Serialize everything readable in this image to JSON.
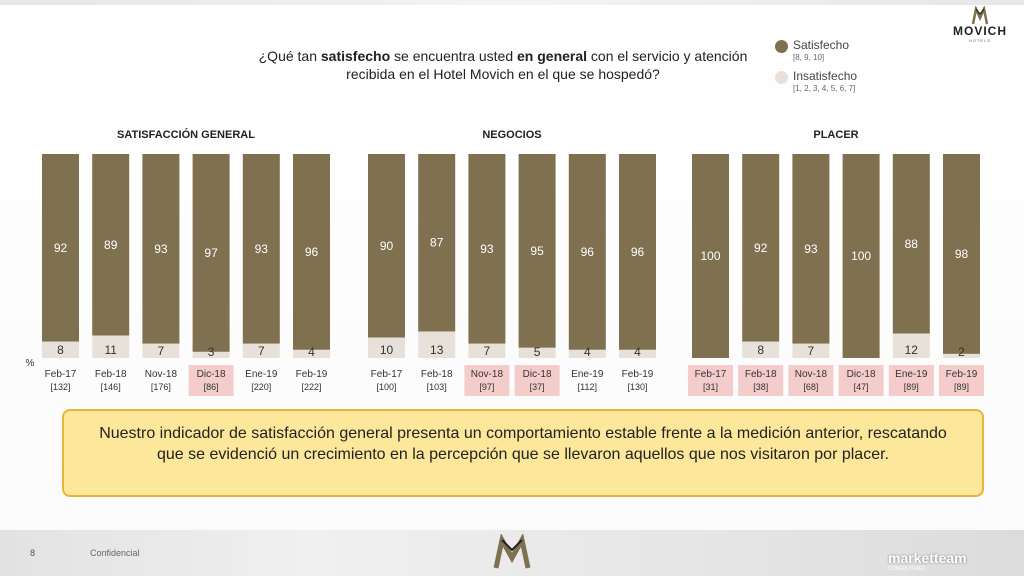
{
  "brand": {
    "logo_text": "MOVICH",
    "logo_sub": "HOTELS"
  },
  "question": {
    "p1": "¿Qué tan ",
    "b1": "satisfecho",
    "p2": " se encuentra usted ",
    "b2": "en general",
    "p3": " con el servicio y atención recibida en el Hotel Movich en el que se hospedó?"
  },
  "legend": [
    {
      "label": "Satisfecho",
      "sub": "[8, 9, 10]",
      "color": "#7f7150"
    },
    {
      "label": "Insatisfecho",
      "sub": "[1, 2, 3, 4, 5, 6, 7]",
      "color": "#e8e1da"
    }
  ],
  "percent_label": "%",
  "colors": {
    "satisfied": "#7f7150",
    "unsatisfied": "#e8e1da",
    "highlight": "#f5cccc",
    "callout_bg": "#fce79b",
    "callout_border": "#e8b53c"
  },
  "chart_data": [
    {
      "type": "bar",
      "stacked": true,
      "title": "SATISFACCIÓN GENERAL",
      "categories": [
        "Feb-17",
        "Feb-18",
        "Nov-18",
        "Dic-18",
        "Ene-19",
        "Feb-19"
      ],
      "bases": [
        "[132]",
        "[146]",
        "[176]",
        "[86]",
        "[220]",
        "[222]"
      ],
      "highlighted": [
        false,
        false,
        false,
        true,
        false,
        false
      ],
      "series": [
        {
          "name": "Satisfecho",
          "values": [
            92,
            89,
            93,
            97,
            93,
            96
          ]
        },
        {
          "name": "Insatisfecho",
          "values": [
            8,
            11,
            7,
            3,
            7,
            4
          ]
        }
      ],
      "ylim": [
        0,
        100
      ]
    },
    {
      "type": "bar",
      "stacked": true,
      "title": "NEGOCIOS",
      "categories": [
        "Feb-17",
        "Feb-18",
        "Nov-18",
        "Dic-18",
        "Ene-19",
        "Feb-19"
      ],
      "bases": [
        "[100]",
        "[103]",
        "[97]",
        "[37]",
        "[112]",
        "[130]"
      ],
      "highlighted": [
        false,
        false,
        true,
        true,
        false,
        false
      ],
      "series": [
        {
          "name": "Satisfecho",
          "values": [
            90,
            87,
            93,
            95,
            96,
            96
          ]
        },
        {
          "name": "Insatisfecho",
          "values": [
            10,
            13,
            7,
            5,
            4,
            4
          ]
        }
      ],
      "ylim": [
        0,
        100
      ]
    },
    {
      "type": "bar",
      "stacked": true,
      "title": "PLACER",
      "categories": [
        "Feb-17",
        "Feb-18",
        "Nov-18",
        "Dic-18",
        "Ene-19",
        "Feb-19"
      ],
      "bases": [
        "[31]",
        "[38]",
        "[68]",
        "[47]",
        "[89]",
        "[89]"
      ],
      "highlighted": [
        true,
        true,
        true,
        true,
        true,
        true
      ],
      "series": [
        {
          "name": "Satisfecho",
          "values": [
            100,
            92,
            93,
            100,
            88,
            98
          ]
        },
        {
          "name": "Insatisfecho",
          "values": [
            0,
            8,
            7,
            0,
            12,
            2
          ]
        }
      ],
      "ylim": [
        0,
        100
      ]
    }
  ],
  "callout": "Nuestro indicador de satisfacción general presenta un comportamiento estable frente a la medición anterior, rescatando que se evidenció un crecimiento en la percepción que se llevaron aquellos que nos visitaron por placer.",
  "footer": {
    "page": "8",
    "confidential": "Confidencial",
    "brand": "marketteam",
    "brand_sub": "CONSULTORES"
  }
}
